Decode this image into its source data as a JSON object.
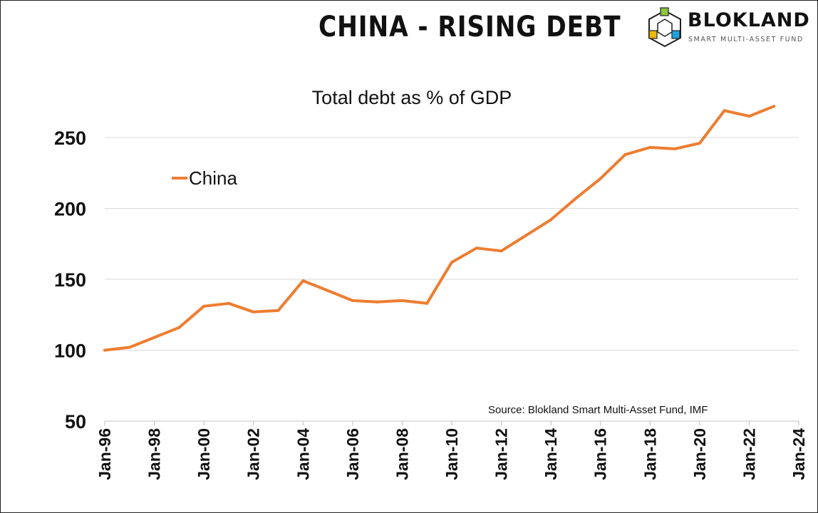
{
  "header": {
    "title": "CHINA - RISING DEBT",
    "logo_name": "BLOKLAND",
    "logo_tagline": "SMART MULTI-ASSET FUND"
  },
  "colors": {
    "series": "#ED7D31",
    "grid": "#D9D9D9",
    "text": "#111111"
  },
  "chart_data": {
    "type": "line",
    "title": "Total debt as % of GDP",
    "source": "Source: Blokland Smart Multi-Asset Fund, IMF",
    "legend_position": "left-upper",
    "grid": true,
    "ylim": [
      50,
      270
    ],
    "yticks": [
      "50",
      "100",
      "150",
      "200",
      "250"
    ],
    "xlim": [
      1996,
      2024
    ],
    "xticks": [
      "Jan-96",
      "Jan-98",
      "Jan-00",
      "Jan-02",
      "Jan-04",
      "Jan-06",
      "Jan-08",
      "Jan-10",
      "Jan-12",
      "Jan-14",
      "Jan-16",
      "Jan-18",
      "Jan-20",
      "Jan-22",
      "Jan-24"
    ],
    "xlabel": "",
    "ylabel": "",
    "series": [
      {
        "name": "China",
        "x": [
          1996,
          1997,
          1998,
          1999,
          2000,
          2001,
          2002,
          2003,
          2004,
          2005,
          2006,
          2007,
          2008,
          2009,
          2010,
          2011,
          2012,
          2013,
          2014,
          2015,
          2016,
          2017,
          2018,
          2019,
          2020,
          2021,
          2022,
          2023
        ],
        "values": [
          100,
          102,
          109,
          116,
          131,
          133,
          127,
          128,
          149,
          142,
          135,
          134,
          135,
          133,
          162,
          172,
          170,
          181,
          192,
          207,
          221,
          238,
          243,
          242,
          246,
          269,
          265,
          272
        ]
      }
    ]
  }
}
